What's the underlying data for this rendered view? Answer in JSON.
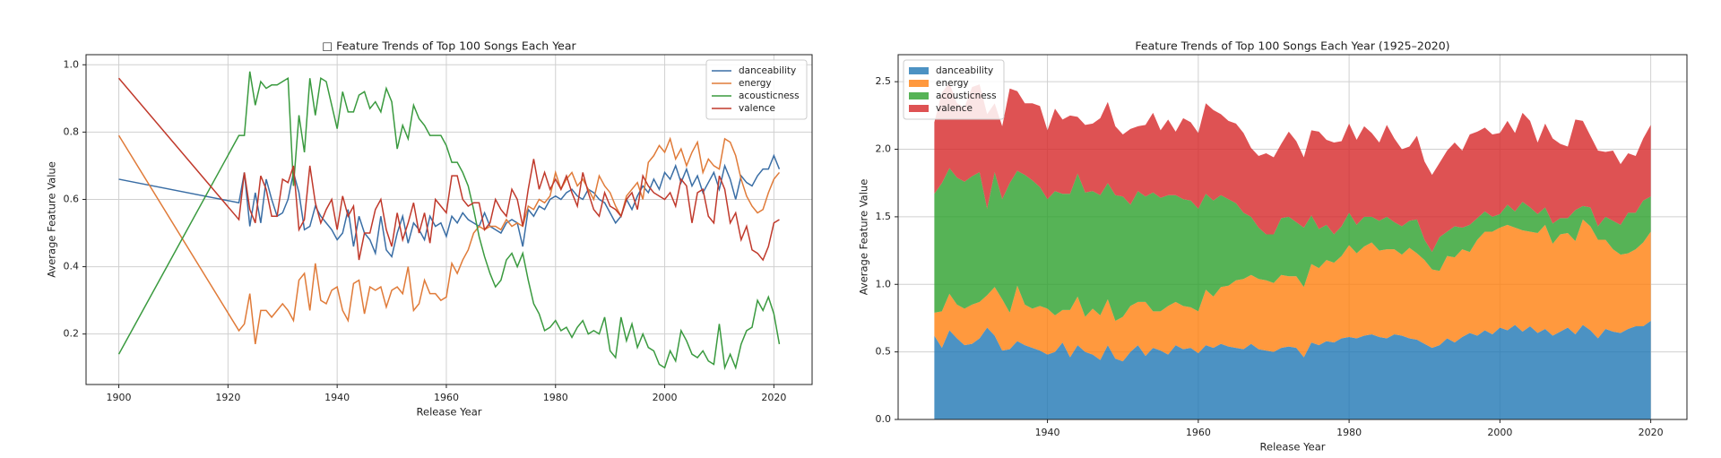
{
  "chart_data": [
    {
      "type": "line",
      "title": "□ Feature Trends of Top 100 Songs Each Year",
      "x_label": "Release Year",
      "y_label": "Average Feature Value",
      "x": [
        1900,
        1922,
        1923,
        1924,
        1925,
        1926,
        1927,
        1928,
        1929,
        1930,
        1931,
        1932,
        1933,
        1934,
        1935,
        1936,
        1937,
        1938,
        1939,
        1940,
        1941,
        1942,
        1943,
        1944,
        1945,
        1946,
        1947,
        1948,
        1949,
        1950,
        1951,
        1952,
        1953,
        1954,
        1955,
        1956,
        1957,
        1958,
        1959,
        1960,
        1961,
        1962,
        1963,
        1964,
        1965,
        1966,
        1967,
        1968,
        1969,
        1970,
        1971,
        1972,
        1973,
        1974,
        1975,
        1976,
        1977,
        1978,
        1979,
        1980,
        1981,
        1982,
        1983,
        1984,
        1985,
        1986,
        1987,
        1988,
        1989,
        1990,
        1991,
        1992,
        1993,
        1994,
        1995,
        1996,
        1997,
        1998,
        1999,
        2000,
        2001,
        2002,
        2003,
        2004,
        2005,
        2006,
        2007,
        2008,
        2009,
        2010,
        2011,
        2012,
        2013,
        2014,
        2015,
        2016,
        2017,
        2018,
        2019,
        2020,
        2021
      ],
      "series": [
        {
          "name": "danceability",
          "color": "#3a6ea5",
          "values": [
            0.66,
            0.59,
            0.68,
            0.52,
            0.62,
            0.53,
            0.66,
            0.6,
            0.55,
            0.56,
            0.6,
            0.68,
            0.62,
            0.51,
            0.52,
            0.58,
            0.55,
            0.53,
            0.51,
            0.48,
            0.5,
            0.57,
            0.46,
            0.55,
            0.5,
            0.48,
            0.44,
            0.55,
            0.45,
            0.43,
            0.5,
            0.55,
            0.47,
            0.53,
            0.51,
            0.48,
            0.55,
            0.52,
            0.53,
            0.49,
            0.55,
            0.53,
            0.56,
            0.54,
            0.53,
            0.52,
            0.56,
            0.52,
            0.51,
            0.5,
            0.53,
            0.54,
            0.53,
            0.46,
            0.57,
            0.55,
            0.58,
            0.57,
            0.6,
            0.61,
            0.6,
            0.62,
            0.63,
            0.61,
            0.6,
            0.63,
            0.62,
            0.6,
            0.59,
            0.56,
            0.53,
            0.55,
            0.6,
            0.57,
            0.61,
            0.64,
            0.62,
            0.66,
            0.63,
            0.68,
            0.66,
            0.7,
            0.65,
            0.69,
            0.64,
            0.67,
            0.62,
            0.65,
            0.68,
            0.63,
            0.7,
            0.66,
            0.6,
            0.67,
            0.65,
            0.64,
            0.67,
            0.69,
            0.69,
            0.73,
            0.69
          ]
        },
        {
          "name": "energy",
          "color": "#e07b39",
          "values": [
            0.79,
            0.21,
            0.23,
            0.32,
            0.17,
            0.27,
            0.27,
            0.25,
            0.27,
            0.29,
            0.27,
            0.24,
            0.36,
            0.38,
            0.27,
            0.41,
            0.3,
            0.29,
            0.33,
            0.34,
            0.27,
            0.24,
            0.35,
            0.36,
            0.26,
            0.34,
            0.33,
            0.34,
            0.28,
            0.33,
            0.34,
            0.32,
            0.4,
            0.27,
            0.29,
            0.36,
            0.32,
            0.32,
            0.3,
            0.31,
            0.41,
            0.38,
            0.42,
            0.45,
            0.5,
            0.52,
            0.51,
            0.52,
            0.52,
            0.51,
            0.54,
            0.52,
            0.53,
            0.52,
            0.58,
            0.57,
            0.6,
            0.59,
            0.61,
            0.68,
            0.63,
            0.66,
            0.68,
            0.64,
            0.66,
            0.63,
            0.6,
            0.67,
            0.64,
            0.62,
            0.58,
            0.55,
            0.61,
            0.63,
            0.65,
            0.6,
            0.71,
            0.73,
            0.76,
            0.74,
            0.78,
            0.72,
            0.75,
            0.7,
            0.74,
            0.77,
            0.68,
            0.72,
            0.7,
            0.69,
            0.78,
            0.77,
            0.73,
            0.66,
            0.61,
            0.58,
            0.56,
            0.57,
            0.62,
            0.66,
            0.68
          ]
        },
        {
          "name": "acousticness",
          "color": "#3a9a3f",
          "values": [
            0.14,
            0.79,
            0.79,
            0.98,
            0.88,
            0.95,
            0.93,
            0.94,
            0.94,
            0.95,
            0.96,
            0.64,
            0.85,
            0.74,
            0.96,
            0.85,
            0.96,
            0.95,
            0.88,
            0.81,
            0.92,
            0.86,
            0.86,
            0.91,
            0.92,
            0.87,
            0.89,
            0.86,
            0.93,
            0.89,
            0.75,
            0.82,
            0.78,
            0.88,
            0.84,
            0.82,
            0.79,
            0.79,
            0.79,
            0.76,
            0.71,
            0.71,
            0.68,
            0.64,
            0.57,
            0.49,
            0.43,
            0.38,
            0.34,
            0.36,
            0.42,
            0.44,
            0.4,
            0.44,
            0.36,
            0.29,
            0.26,
            0.21,
            0.22,
            0.24,
            0.21,
            0.22,
            0.19,
            0.22,
            0.24,
            0.2,
            0.21,
            0.2,
            0.25,
            0.15,
            0.13,
            0.25,
            0.18,
            0.23,
            0.16,
            0.2,
            0.16,
            0.15,
            0.11,
            0.1,
            0.15,
            0.12,
            0.21,
            0.18,
            0.14,
            0.13,
            0.15,
            0.12,
            0.11,
            0.23,
            0.1,
            0.14,
            0.1,
            0.17,
            0.21,
            0.22,
            0.3,
            0.27,
            0.31,
            0.26,
            0.17
          ]
        },
        {
          "name": "valence",
          "color": "#c0392b",
          "values": [
            0.96,
            0.54,
            0.68,
            0.57,
            0.53,
            0.67,
            0.63,
            0.55,
            0.55,
            0.66,
            0.65,
            0.7,
            0.51,
            0.54,
            0.7,
            0.59,
            0.53,
            0.57,
            0.6,
            0.51,
            0.61,
            0.55,
            0.58,
            0.42,
            0.5,
            0.5,
            0.57,
            0.6,
            0.51,
            0.46,
            0.56,
            0.48,
            0.53,
            0.59,
            0.5,
            0.56,
            0.47,
            0.6,
            0.58,
            0.56,
            0.67,
            0.67,
            0.6,
            0.58,
            0.59,
            0.59,
            0.51,
            0.53,
            0.6,
            0.57,
            0.55,
            0.63,
            0.6,
            0.52,
            0.63,
            0.72,
            0.63,
            0.68,
            0.63,
            0.66,
            0.63,
            0.67,
            0.62,
            0.58,
            0.68,
            0.62,
            0.57,
            0.55,
            0.62,
            0.58,
            0.57,
            0.55,
            0.6,
            0.62,
            0.57,
            0.67,
            0.64,
            0.62,
            0.61,
            0.6,
            0.62,
            0.58,
            0.66,
            0.64,
            0.53,
            0.62,
            0.63,
            0.55,
            0.53,
            0.67,
            0.63,
            0.53,
            0.56,
            0.48,
            0.52,
            0.45,
            0.44,
            0.42,
            0.46,
            0.53,
            0.54
          ]
        }
      ],
      "xlim": [
        1894,
        2027
      ],
      "xticks": [
        1900,
        1920,
        1940,
        1960,
        1980,
        2000,
        2020
      ],
      "ylim": [
        0.05,
        1.03
      ],
      "yticks": [
        0.2,
        0.4,
        0.6,
        0.8,
        {
          "value": 1,
          "label": "1.0"
        }
      ],
      "grid": true,
      "legend": "upper right"
    },
    {
      "type": "area",
      "title": "Feature Trends of Top 100 Songs Each Year (1925–2020)",
      "x_label": "Release Year",
      "y_label": "Average Feature Value",
      "x": [
        1925,
        1926,
        1927,
        1928,
        1929,
        1930,
        1931,
        1932,
        1933,
        1934,
        1935,
        1936,
        1937,
        1938,
        1939,
        1940,
        1941,
        1942,
        1943,
        1944,
        1945,
        1946,
        1947,
        1948,
        1949,
        1950,
        1951,
        1952,
        1953,
        1954,
        1955,
        1956,
        1957,
        1958,
        1959,
        1960,
        1961,
        1962,
        1963,
        1964,
        1965,
        1966,
        1967,
        1968,
        1969,
        1970,
        1971,
        1972,
        1973,
        1974,
        1975,
        1976,
        1977,
        1978,
        1979,
        1980,
        1981,
        1982,
        1983,
        1984,
        1985,
        1986,
        1987,
        1988,
        1989,
        1990,
        1991,
        1992,
        1993,
        1994,
        1995,
        1996,
        1997,
        1998,
        1999,
        2000,
        2001,
        2002,
        2003,
        2004,
        2005,
        2006,
        2007,
        2008,
        2009,
        2010,
        2011,
        2012,
        2013,
        2014,
        2015,
        2016,
        2017,
        2018,
        2019,
        2020
      ],
      "series": [
        {
          "name": "danceability",
          "color": "#1f77b4",
          "values": [
            0.62,
            0.53,
            0.66,
            0.6,
            0.55,
            0.56,
            0.6,
            0.68,
            0.62,
            0.51,
            0.52,
            0.58,
            0.55,
            0.53,
            0.51,
            0.48,
            0.5,
            0.57,
            0.46,
            0.55,
            0.5,
            0.48,
            0.44,
            0.55,
            0.45,
            0.43,
            0.5,
            0.55,
            0.47,
            0.53,
            0.51,
            0.48,
            0.55,
            0.52,
            0.53,
            0.49,
            0.55,
            0.53,
            0.56,
            0.54,
            0.53,
            0.52,
            0.56,
            0.52,
            0.51,
            0.5,
            0.53,
            0.54,
            0.53,
            0.46,
            0.57,
            0.55,
            0.58,
            0.57,
            0.6,
            0.61,
            0.6,
            0.62,
            0.63,
            0.61,
            0.6,
            0.63,
            0.62,
            0.6,
            0.59,
            0.56,
            0.53,
            0.55,
            0.6,
            0.57,
            0.61,
            0.64,
            0.62,
            0.66,
            0.63,
            0.68,
            0.66,
            0.7,
            0.65,
            0.69,
            0.64,
            0.67,
            0.62,
            0.65,
            0.68,
            0.63,
            0.7,
            0.66,
            0.6,
            0.67,
            0.65,
            0.64,
            0.67,
            0.69,
            0.69,
            0.73
          ]
        },
        {
          "name": "energy",
          "color": "#ff7f0e",
          "values": [
            0.17,
            0.27,
            0.27,
            0.25,
            0.27,
            0.29,
            0.27,
            0.24,
            0.36,
            0.38,
            0.27,
            0.41,
            0.3,
            0.29,
            0.33,
            0.34,
            0.27,
            0.24,
            0.35,
            0.36,
            0.26,
            0.34,
            0.33,
            0.34,
            0.28,
            0.33,
            0.34,
            0.32,
            0.4,
            0.27,
            0.29,
            0.36,
            0.32,
            0.32,
            0.3,
            0.31,
            0.41,
            0.38,
            0.42,
            0.45,
            0.5,
            0.52,
            0.51,
            0.52,
            0.52,
            0.51,
            0.54,
            0.52,
            0.53,
            0.52,
            0.58,
            0.57,
            0.6,
            0.59,
            0.61,
            0.68,
            0.63,
            0.66,
            0.68,
            0.64,
            0.66,
            0.63,
            0.6,
            0.67,
            0.64,
            0.62,
            0.58,
            0.55,
            0.61,
            0.63,
            0.65,
            0.6,
            0.71,
            0.73,
            0.76,
            0.74,
            0.78,
            0.72,
            0.75,
            0.7,
            0.74,
            0.77,
            0.68,
            0.72,
            0.7,
            0.69,
            0.78,
            0.77,
            0.73,
            0.66,
            0.61,
            0.58,
            0.56,
            0.57,
            0.62,
            0.66
          ]
        },
        {
          "name": "acousticness",
          "color": "#2ca02c",
          "values": [
            0.88,
            0.95,
            0.93,
            0.94,
            0.94,
            0.95,
            0.96,
            0.64,
            0.85,
            0.74,
            0.96,
            0.85,
            0.96,
            0.95,
            0.88,
            0.81,
            0.92,
            0.86,
            0.86,
            0.91,
            0.92,
            0.87,
            0.89,
            0.86,
            0.93,
            0.89,
            0.75,
            0.82,
            0.78,
            0.88,
            0.84,
            0.82,
            0.79,
            0.79,
            0.79,
            0.76,
            0.71,
            0.71,
            0.68,
            0.64,
            0.57,
            0.49,
            0.43,
            0.38,
            0.34,
            0.36,
            0.42,
            0.44,
            0.4,
            0.44,
            0.36,
            0.29,
            0.26,
            0.21,
            0.22,
            0.24,
            0.21,
            0.22,
            0.19,
            0.22,
            0.24,
            0.2,
            0.21,
            0.2,
            0.25,
            0.15,
            0.13,
            0.25,
            0.18,
            0.23,
            0.16,
            0.2,
            0.16,
            0.15,
            0.11,
            0.1,
            0.15,
            0.12,
            0.21,
            0.18,
            0.14,
            0.13,
            0.15,
            0.12,
            0.11,
            0.23,
            0.1,
            0.14,
            0.1,
            0.17,
            0.21,
            0.22,
            0.3,
            0.27,
            0.31,
            0.26
          ]
        },
        {
          "name": "valence",
          "color": "#d62728",
          "values": [
            0.53,
            0.67,
            0.63,
            0.55,
            0.55,
            0.66,
            0.65,
            0.7,
            0.51,
            0.54,
            0.7,
            0.59,
            0.53,
            0.57,
            0.6,
            0.51,
            0.61,
            0.55,
            0.58,
            0.42,
            0.5,
            0.5,
            0.57,
            0.6,
            0.51,
            0.46,
            0.56,
            0.48,
            0.53,
            0.59,
            0.5,
            0.56,
            0.47,
            0.6,
            0.58,
            0.56,
            0.67,
            0.67,
            0.6,
            0.58,
            0.59,
            0.59,
            0.51,
            0.53,
            0.6,
            0.57,
            0.55,
            0.63,
            0.6,
            0.52,
            0.63,
            0.72,
            0.63,
            0.68,
            0.63,
            0.66,
            0.63,
            0.67,
            0.62,
            0.58,
            0.68,
            0.62,
            0.57,
            0.55,
            0.62,
            0.58,
            0.57,
            0.55,
            0.6,
            0.62,
            0.57,
            0.67,
            0.64,
            0.62,
            0.61,
            0.6,
            0.62,
            0.58,
            0.66,
            0.64,
            0.53,
            0.62,
            0.63,
            0.55,
            0.53,
            0.67,
            0.63,
            0.53,
            0.56,
            0.48,
            0.52,
            0.45,
            0.44,
            0.42,
            0.46,
            0.53
          ]
        }
      ],
      "xlim": [
        1920.2,
        2024.8
      ],
      "xticks": [
        1940,
        1960,
        1980,
        2000,
        2020
      ],
      "ylim": [
        0,
        2.7
      ],
      "yticks": [
        {
          "value": 0,
          "label": "0.0"
        },
        0.5,
        {
          "value": 1,
          "label": "1.0"
        },
        1.5,
        {
          "value": 2,
          "label": "2.0"
        },
        2.5
      ],
      "grid": true,
      "legend": "upper left"
    }
  ]
}
